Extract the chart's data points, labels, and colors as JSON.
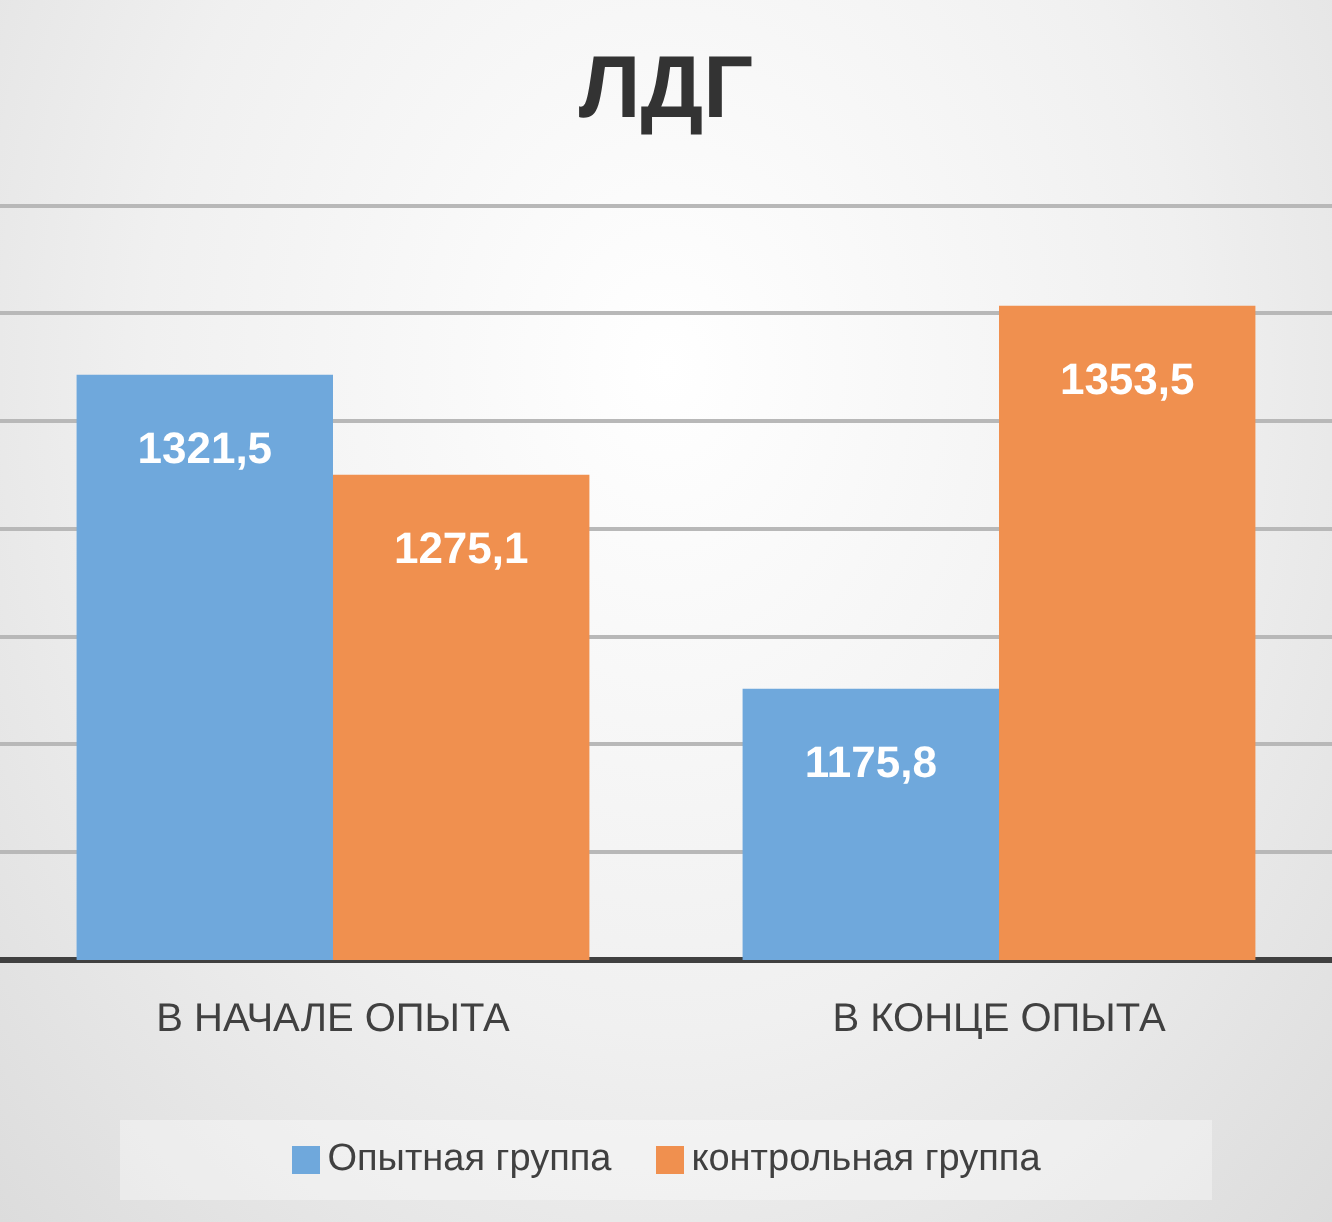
{
  "chart_data": {
    "type": "bar",
    "title": "ЛДГ",
    "categories": [
      "В НАЧАЛЕ ОПЫТА",
      "В КОНЦЕ ОПЫТА"
    ],
    "series": [
      {
        "name": "Опытная группа",
        "color": "#6fa8dc",
        "values": [
          1321.5,
          1175.8
        ],
        "value_labels": [
          "1321,5",
          "1175,8"
        ]
      },
      {
        "name": "контрольная группа",
        "color": "#f0904f",
        "values": [
          1275.1,
          1353.5
        ],
        "value_labels": [
          "1275,1",
          "1353,5"
        ]
      }
    ],
    "ylim": [
      1050,
      1400
    ],
    "yticks": [
      {
        "value": 1050,
        "label": null
      },
      {
        "value": 1100,
        "label": null
      },
      {
        "value": 1150,
        "label": null
      },
      {
        "value": 1200,
        "label": null
      },
      {
        "value": 1250,
        "label": null
      },
      {
        "value": 1300,
        "label": null
      },
      {
        "value": 1350,
        "label": null
      },
      {
        "value": 1400,
        "label": null
      }
    ],
    "tick_labels": "x",
    "grid": "y",
    "legend": "bottom"
  }
}
